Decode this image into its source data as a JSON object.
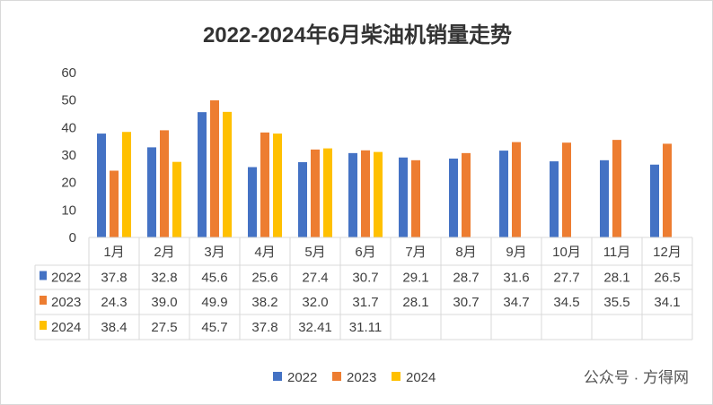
{
  "chart_data": {
    "type": "bar",
    "title": "2022-2024年6月柴油机销量走势",
    "categories": [
      "1月",
      "2月",
      "3月",
      "4月",
      "5月",
      "6月",
      "7月",
      "8月",
      "9月",
      "10月",
      "11月",
      "12月"
    ],
    "series": [
      {
        "name": "2022",
        "color": "#4472C4",
        "values": [
          37.8,
          32.8,
          45.6,
          25.6,
          27.4,
          30.7,
          29.1,
          28.7,
          31.6,
          27.7,
          28.1,
          26.5
        ],
        "labels": [
          "37.8",
          "32.8",
          "45.6",
          "25.6",
          "27.4",
          "30.7",
          "29.1",
          "28.7",
          "31.6",
          "27.7",
          "28.1",
          "26.5"
        ]
      },
      {
        "name": "2023",
        "color": "#ED7D31",
        "values": [
          24.3,
          39.0,
          49.9,
          38.2,
          32.0,
          31.7,
          28.1,
          30.7,
          34.7,
          34.5,
          35.5,
          34.1
        ],
        "labels": [
          "24.3",
          "39.0",
          "49.9",
          "38.2",
          "32.0",
          "31.7",
          "28.1",
          "30.7",
          "34.7",
          "34.5",
          "35.5",
          "34.1"
        ]
      },
      {
        "name": "2024",
        "color": "#FFC000",
        "values": [
          38.4,
          27.5,
          45.7,
          37.8,
          32.41,
          31.11,
          null,
          null,
          null,
          null,
          null,
          null
        ],
        "labels": [
          "38.4",
          "27.5",
          "45.7",
          "37.8",
          "32.41",
          "31.11",
          "",
          "",
          "",
          "",
          "",
          ""
        ]
      }
    ],
    "yticks": [
      "0",
      "10",
      "20",
      "30",
      "40",
      "50",
      "60"
    ],
    "ylim": [
      0,
      60
    ],
    "legend_position": "bottom",
    "data_table": true
  },
  "watermark": "公众号 · 方得网"
}
